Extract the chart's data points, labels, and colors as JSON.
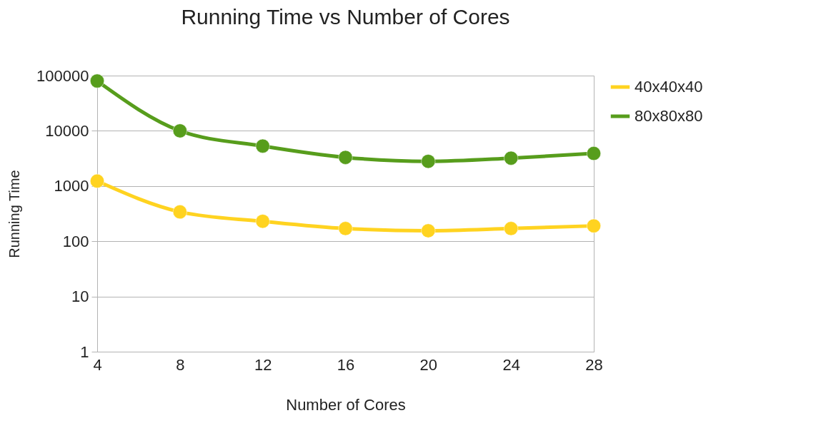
{
  "chart_data": {
    "type": "line",
    "title": "Running Time vs Number of Cores",
    "xlabel": "Number of Cores",
    "ylabel": "Running Time",
    "x": [
      4,
      8,
      12,
      16,
      20,
      24,
      28
    ],
    "xlim": [
      4,
      28
    ],
    "xticks": [
      4,
      8,
      12,
      16,
      20,
      24,
      28
    ],
    "ylim": [
      1,
      100000
    ],
    "yticks": [
      1,
      10,
      100,
      1000,
      10000,
      100000
    ],
    "log": "y",
    "grid": "y",
    "legend": "right",
    "marker": "circle",
    "line_style": "solid",
    "series": [
      {
        "name": "40x40x40",
        "color": "#ffd320",
        "values": [
          1230,
          340,
          230,
          170,
          155,
          170,
          190
        ]
      },
      {
        "name": "80x80x80",
        "color": "#579d1c",
        "values": [
          80000,
          10000,
          5300,
          3300,
          2800,
          3200,
          3900
        ]
      }
    ]
  }
}
